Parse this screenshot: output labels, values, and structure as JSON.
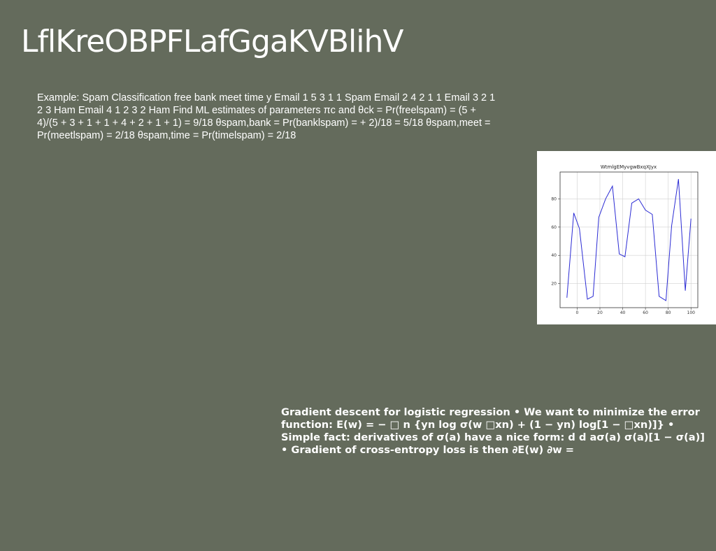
{
  "slide": {
    "title": "LflKreOBPFLafGgaKVBlihV",
    "text_block_1": "Example: Spam Classification free bank meet time y Email 1 5 3 1 1 Spam Email 2 4 2 1 1 Email 3 2 1 2 3 Ham Email 4 1 2 3 2 Ham Find ML estimates of parameters πc and θck = Pr(freelspam) = (5 + 4)/(5 + 3 + 1 + 1 + 4 + 2 + 1 + 1) = 9/18 θspam,bank = Pr(banklspam) = + 2)/18 = 5/18 θspam,meet = Pr(meetlspam) = 2/18 θspam,time = Pr(timelspam) = 2/18",
    "text_block_2": "Gradient descent for logistic regression • We want to minimize the error function: E(w) = − □ n {yn log σ(w □xn) + (1 − yn) log[1 − □xn)]} • Simple fact: derivatives of σ(a) have a nice form: d d aσ(a) σ(a)[1 − σ(a)] • Gradient of cross-entropy loss is then ∂E(w) ∂w ="
  },
  "chart_data": {
    "type": "line",
    "title": "WtmlgEMyvgwBxqXJyx",
    "xlabel": "",
    "ylabel": "",
    "xlim": [
      -15,
      106
    ],
    "ylim": [
      3,
      99
    ],
    "x_ticks": [
      0,
      20,
      40,
      60,
      80,
      100
    ],
    "y_ticks": [
      20,
      40,
      60,
      80
    ],
    "grid": true,
    "line_color": "#2b2bd4",
    "series": [
      {
        "x": [
          -9,
          -3,
          2,
          9,
          14,
          19,
          25,
          31,
          37,
          42,
          48,
          54,
          60,
          66,
          72,
          78,
          83,
          89,
          95,
          100
        ],
        "y": [
          10,
          70,
          59,
          9,
          11,
          67,
          80,
          89,
          41,
          39,
          77,
          80,
          72,
          69,
          11,
          8,
          61,
          94,
          15,
          66
        ]
      }
    ]
  }
}
